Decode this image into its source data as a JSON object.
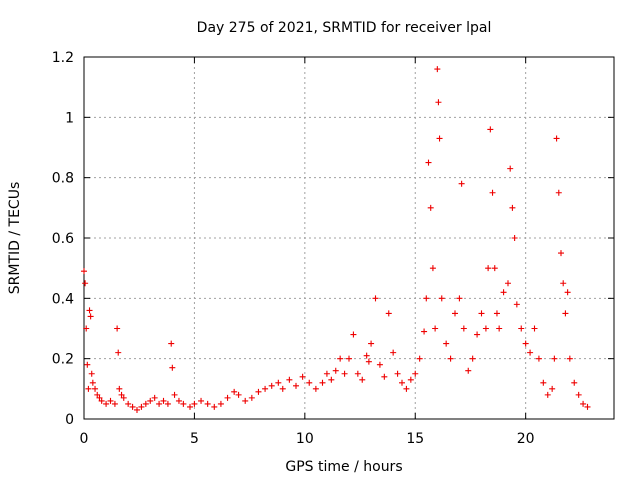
{
  "chart_data": {
    "type": "scatter",
    "title": "Day 275 of 2021, SRMTID for receiver lpal",
    "xlabel": "GPS time / hours",
    "ylabel": "SRMTID / TECUs",
    "xlim": [
      0,
      24
    ],
    "ylim": [
      0,
      1.2
    ],
    "xticks": [
      0,
      5,
      10,
      15,
      20
    ],
    "xtick_labels": [
      "0",
      "5",
      "10",
      "15",
      "20"
    ],
    "yticks": [
      0,
      0.2,
      0.4,
      0.6,
      0.8,
      1.0,
      1.2
    ],
    "ytick_labels": [
      "0",
      "0.2",
      "0.4",
      "0.6",
      "0.8",
      "1",
      "1.2"
    ],
    "grid": true,
    "marker": "+",
    "color": "#ee0000",
    "series": [
      {
        "name": "SRMTID",
        "x": [
          0.0,
          0.05,
          0.1,
          0.15,
          0.2,
          0.25,
          0.3,
          0.35,
          0.4,
          0.5,
          0.6,
          0.7,
          0.8,
          1.0,
          1.2,
          1.4,
          1.5,
          1.55,
          1.6,
          1.7,
          1.8,
          2.0,
          2.2,
          2.4,
          2.6,
          2.8,
          3.0,
          3.2,
          3.4,
          3.6,
          3.8,
          3.95,
          4.0,
          4.1,
          4.3,
          4.5,
          4.8,
          5.0,
          5.3,
          5.6,
          5.9,
          6.2,
          6.5,
          6.8,
          7.0,
          7.3,
          7.6,
          7.9,
          8.2,
          8.5,
          8.8,
          9.0,
          9.3,
          9.6,
          9.9,
          10.2,
          10.5,
          10.8,
          11.0,
          11.2,
          11.4,
          11.6,
          11.8,
          12.0,
          12.2,
          12.4,
          12.6,
          12.8,
          12.9,
          13.0,
          13.2,
          13.4,
          13.6,
          13.8,
          14.0,
          14.2,
          14.4,
          14.6,
          14.8,
          15.0,
          15.2,
          15.4,
          15.5,
          15.6,
          15.7,
          15.8,
          15.9,
          16.0,
          16.05,
          16.1,
          16.2,
          16.4,
          16.6,
          16.8,
          17.0,
          17.1,
          17.2,
          17.4,
          17.6,
          17.8,
          18.0,
          18.2,
          18.3,
          18.4,
          18.5,
          18.6,
          18.7,
          18.8,
          19.0,
          19.2,
          19.3,
          19.4,
          19.5,
          19.6,
          19.8,
          20.0,
          20.2,
          20.4,
          20.6,
          20.8,
          21.0,
          21.2,
          21.3,
          21.4,
          21.5,
          21.6,
          21.7,
          21.8,
          21.9,
          22.0,
          22.2,
          22.4,
          22.6,
          22.8
        ],
        "y": [
          0.49,
          0.45,
          0.3,
          0.18,
          0.1,
          0.36,
          0.34,
          0.15,
          0.12,
          0.1,
          0.08,
          0.07,
          0.06,
          0.05,
          0.06,
          0.05,
          0.3,
          0.22,
          0.1,
          0.08,
          0.07,
          0.05,
          0.04,
          0.03,
          0.04,
          0.05,
          0.06,
          0.07,
          0.05,
          0.06,
          0.05,
          0.25,
          0.17,
          0.08,
          0.06,
          0.05,
          0.04,
          0.05,
          0.06,
          0.05,
          0.04,
          0.05,
          0.07,
          0.09,
          0.08,
          0.06,
          0.07,
          0.09,
          0.1,
          0.11,
          0.12,
          0.1,
          0.13,
          0.11,
          0.14,
          0.12,
          0.1,
          0.12,
          0.15,
          0.13,
          0.16,
          0.2,
          0.15,
          0.2,
          0.28,
          0.15,
          0.13,
          0.21,
          0.19,
          0.25,
          0.4,
          0.18,
          0.14,
          0.35,
          0.22,
          0.15,
          0.12,
          0.1,
          0.13,
          0.15,
          0.2,
          0.29,
          0.4,
          0.85,
          0.7,
          0.5,
          0.3,
          1.16,
          1.05,
          0.93,
          0.4,
          0.25,
          0.2,
          0.35,
          0.4,
          0.78,
          0.3,
          0.16,
          0.2,
          0.28,
          0.35,
          0.3,
          0.5,
          0.96,
          0.75,
          0.5,
          0.35,
          0.3,
          0.42,
          0.45,
          0.83,
          0.7,
          0.6,
          0.38,
          0.3,
          0.25,
          0.22,
          0.3,
          0.2,
          0.12,
          0.08,
          0.1,
          0.2,
          0.93,
          0.75,
          0.55,
          0.45,
          0.35,
          0.42,
          0.2,
          0.12,
          0.08,
          0.05,
          0.04
        ]
      }
    ]
  }
}
